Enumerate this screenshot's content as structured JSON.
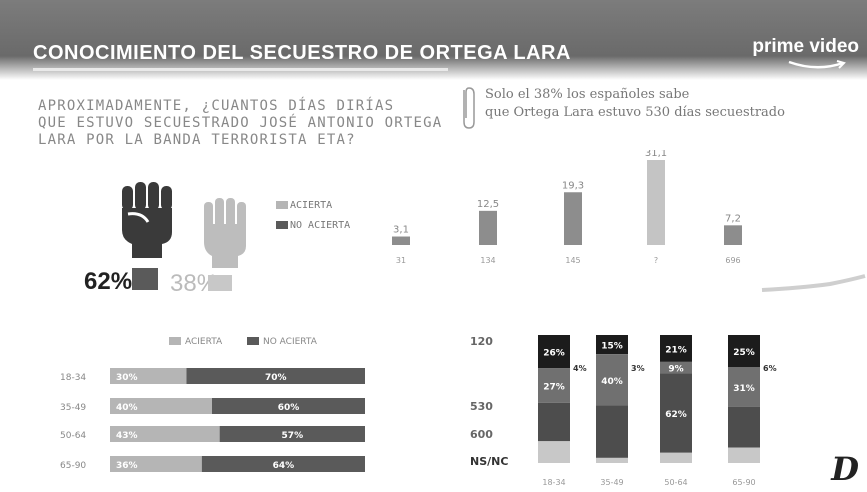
{
  "header": {
    "title": "CONOCIMIENTO DEL SECUESTRO DE ORTEGA LARA",
    "brand": "prime video"
  },
  "question": {
    "line1": "APROXIMADAMENTE, ¿CUANTOS DÍAS DIRÍAS",
    "line2": "QUE ESTUVO SECUESTRADO JOSÉ ANTONIO ORTEGA",
    "line3": "LARA POR LA BANDA TERRORISTA ETA?"
  },
  "note": {
    "line1": "Solo el 38% los españoles sabe",
    "line2": "que Ortega Lara estuvo 530 días secuestrado"
  },
  "colors": {
    "acierta": "#b5b5b5",
    "no_acierta": "#5a5a5a",
    "nsnc": "#1c1c1c",
    "orange": "#f2a900"
  },
  "icons": [
    "fist-icon",
    "open-hand-icon"
  ],
  "summary": {
    "no_acierta_pct": "62%",
    "acierta_pct": "38%",
    "legend_acierta": "ACIERTA",
    "legend_no_acierta": "NO ACIERTA"
  },
  "logo": "D",
  "chart_data": [
    {
      "type": "bar",
      "categories": [
        "31",
        "134",
        "145",
        "?",
        "696"
      ],
      "values": [
        3.1,
        12.5,
        19.3,
        31.1,
        7.2
      ],
      "value_labels": [
        "3,1",
        "12,5",
        "19,3",
        "31,1",
        "7,2"
      ]
    },
    {
      "type": "bar",
      "orientation": "horizontal",
      "stacked": true,
      "legend": [
        "ACIERTA",
        "NO ACIERTA"
      ],
      "categories": [
        "18-34",
        "35-49",
        "50-64",
        "65-90"
      ],
      "series": [
        {
          "name": "ACIERTA",
          "values": [
            30,
            40,
            43,
            36
          ]
        },
        {
          "name": "NO ACIERTA",
          "values": [
            70,
            60,
            57,
            64
          ]
        }
      ],
      "value_labels": [
        [
          "30%",
          "70%"
        ],
        [
          "40%",
          "60%"
        ],
        [
          "43%",
          "57%"
        ],
        [
          "36%",
          "64%"
        ]
      ]
    },
    {
      "type": "bar",
      "stacked": true,
      "categories": [
        "18-34",
        "35-49",
        "50-64",
        "65-90"
      ],
      "row_labels": [
        "120",
        "530",
        "600",
        "NS/NC"
      ],
      "series": [
        {
          "name": "NS/NC",
          "values": [
            26,
            15,
            21,
            25
          ],
          "labels": [
            "26%",
            "15%",
            "21%",
            "25%"
          ]
        },
        {
          "name": "120",
          "values": [
            27,
            40,
            9,
            31
          ],
          "labels": [
            "27%",
            "40%",
            "9%",
            "31%"
          ]
        },
        {
          "name": "530",
          "values": [
            30,
            41,
            62,
            32
          ],
          "labels": [
            "",
            "",
            "62%",
            ""
          ]
        },
        {
          "name": "600",
          "values": [
            17,
            4,
            8,
            12
          ],
          "labels": [
            "",
            "",
            "",
            ""
          ]
        }
      ],
      "side_labels": [
        "4%",
        "3%",
        "",
        "6%"
      ]
    }
  ]
}
